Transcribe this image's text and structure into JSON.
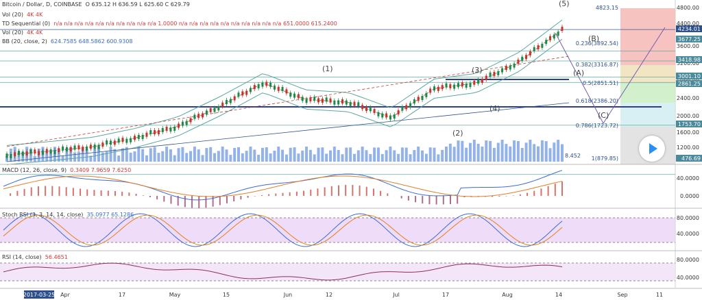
{
  "header": {
    "symbol": "Bitcoin / Dollar, D, COINBASE",
    "ohlc": "O 635.12 H 636.59 L 625.60 C 629.79"
  },
  "legends": {
    "vol1": "Vol (20)",
    "vol1_vals": "4K 4K",
    "td": "TD Sequential (0)",
    "td_vals": "n/a n/a n/a n/a n/a n/a n/a n/a n/a n/a 1.0000 n/a n/a n/a n/a n/a n/a n/a n/a n/a n/a 651.0000 615.2400",
    "vol2": "Vol (20)",
    "vol2_vals": "4K 4K",
    "bb": "BB (20, close, 2)",
    "bb_vals": "624.7585 648.5862 600.9308",
    "macd": "MACD (12, 26, close, 9)",
    "macd_vals": "0.3409 7.9659 7.6250",
    "stoch": "Stoch RSI (3, 3, 14, 14, close)",
    "stoch_vals": "35.0977 65.1286",
    "rsi": "RSI (14, close)",
    "rsi_vals": "56.4651"
  },
  "price_scale": {
    "labels": [
      "4800.00",
      "4400.00",
      "3600.00",
      "3200.00",
      "2800.00",
      "2400.00",
      "2000.00",
      "1600.00",
      "1200.00"
    ],
    "tags": [
      "4234.01",
      "3677.25",
      "3418.98",
      "3001.10",
      "2861.25",
      "1753.70",
      "476.69"
    ]
  },
  "fib": {
    "top": "4823.15",
    "levels": [
      "0.236(3892.54)",
      "0.382(3316.87)",
      "0.5(2851.51)",
      "0.618(2386.20)",
      "0.786(1723.72)",
      "1(879.85)"
    ]
  },
  "waves": [
    "(1)",
    "(2)",
    "(3)",
    "(4)",
    "(5)",
    "(A)",
    "(B)",
    "(C)"
  ],
  "volume_label": "8.452",
  "macd_scale": [
    "40.0000",
    "0.0000"
  ],
  "stoch_scale": [
    "80.0000",
    "40.0000"
  ],
  "rsi_scale": [
    "80.0000",
    "40.0000"
  ],
  "time_axis": {
    "first": "2017-03-25",
    "labels": [
      "Apr",
      "17",
      "May",
      "15",
      "Jun",
      "12",
      "Jul",
      "17",
      "Aug",
      "14",
      "Sep",
      "11"
    ]
  },
  "colors": {
    "up": "#1e8a4a",
    "down": "#c0392b",
    "volume": "#3a73d4",
    "stoch_band": "#e8cdf5",
    "rsi_band": "#f0e0f8",
    "fib_red": "#f5b9b6",
    "fib_green": "#c8ecc0"
  },
  "chart_data": {
    "type": "line",
    "title": "Bitcoin / Dollar, D, COINBASE",
    "x": [
      "2017-03-25",
      "2017-04-03",
      "2017-04-17",
      "2017-05-01",
      "2017-05-15",
      "2017-05-29",
      "2017-06-12",
      "2017-06-26",
      "2017-07-10",
      "2017-07-17",
      "2017-07-24",
      "2017-07-31",
      "2017-08-07",
      "2017-08-14"
    ],
    "series": [
      {
        "values": [
          980,
          1080,
          1190,
          1420,
          1720,
          2250,
          2850,
          2420,
          2350,
          1950,
          2700,
          2850,
          3400,
          4234
        ]
      }
    ],
    "ylim": [
      879,
      4823
    ]
  }
}
